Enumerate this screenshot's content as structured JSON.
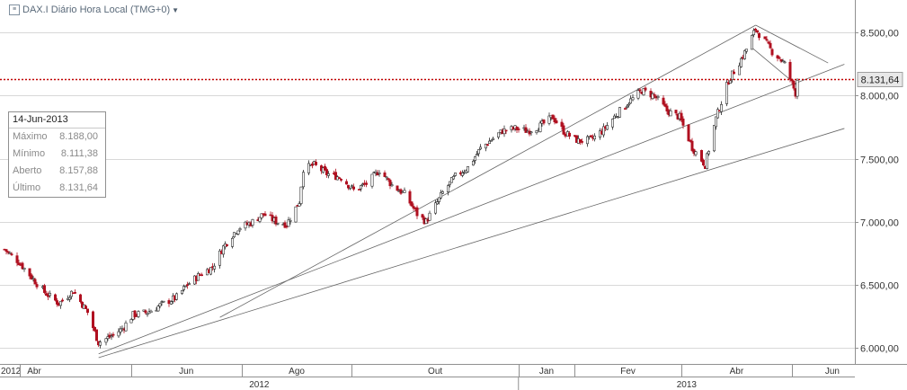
{
  "title": "DAX.I Diário Hora Local (TMG+0)",
  "info_box": {
    "date": "14-Jun-2013",
    "rows": [
      {
        "label": "Máximo",
        "value": "8.188,00"
      },
      {
        "label": "Mínimo",
        "value": "8.111,38"
      },
      {
        "label": "Aberto",
        "value": "8.157,88"
      },
      {
        "label": "Último",
        "value": "8.131,64"
      }
    ]
  },
  "colors": {
    "up": "#2a2a2a",
    "down": "#b01020",
    "ref_line": "#c00000",
    "price_label_bg": "#e8e8e8",
    "grid": "#d8d8d8",
    "channel": "#666666"
  },
  "chart_data": {
    "type": "candlestick",
    "instrument": "DAX.I",
    "timeframe": "daily",
    "x_start": "2012-04-02",
    "x_end": "2013-06-14",
    "ylim": [
      5870,
      8660
    ],
    "y_ticks": [
      6000,
      6500,
      7000,
      7500,
      8000,
      8500
    ],
    "y_tick_labels": [
      "6.000,00",
      "6.500,00",
      "7.000,00",
      "7.500,00",
      "8.000,00",
      "8.500,00"
    ],
    "last_value": 8131.64,
    "last_value_label": "8.131,64",
    "month_labels": [
      {
        "date": "2012-04-01",
        "label": "Abr"
      },
      {
        "date": "2012-06-01",
        "label": "Jun"
      },
      {
        "date": "2012-08-01",
        "label": "Ago"
      },
      {
        "date": "2012-10-01",
        "label": "Out"
      },
      {
        "date": "2013-01-01",
        "label": "Jan"
      },
      {
        "date": "2013-02-01",
        "label": "Fev"
      },
      {
        "date": "2013-04-01",
        "label": "Abr"
      },
      {
        "date": "2013-06-01",
        "label": "Jun"
      }
    ],
    "year_labels": [
      {
        "date": "2012-04-01",
        "label": "2012"
      },
      {
        "date": "2013-01-01",
        "label": "2013"
      }
    ],
    "first_axis_label": "2012",
    "close_path": [
      [
        "2012-04-02",
        6780
      ],
      [
        "2012-04-10",
        6680
      ],
      [
        "2012-04-17",
        6560
      ],
      [
        "2012-04-24",
        6440
      ],
      [
        "2012-05-02",
        6350
      ],
      [
        "2012-05-10",
        6450
      ],
      [
        "2012-05-18",
        6280
      ],
      [
        "2012-05-24",
        6040
      ],
      [
        "2012-06-01",
        6100
      ],
      [
        "2012-06-06",
        6150
      ],
      [
        "2012-06-12",
        6260
      ],
      [
        "2012-06-20",
        6280
      ],
      [
        "2012-06-29",
        6350
      ],
      [
        "2012-07-06",
        6400
      ],
      [
        "2012-07-12",
        6500
      ],
      [
        "2012-07-19",
        6580
      ],
      [
        "2012-07-26",
        6640
      ],
      [
        "2012-08-01",
        6800
      ],
      [
        "2012-08-09",
        6950
      ],
      [
        "2012-08-16",
        6990
      ],
      [
        "2012-08-23",
        7060
      ],
      [
        "2012-08-30",
        7000
      ],
      [
        "2012-09-05",
        6980
      ],
      [
        "2012-09-12",
        7160
      ],
      [
        "2012-09-14",
        7420
      ],
      [
        "2012-09-20",
        7450
      ],
      [
        "2012-09-27",
        7380
      ],
      [
        "2012-10-05",
        7350
      ],
      [
        "2012-10-12",
        7250
      ],
      [
        "2012-10-19",
        7300
      ],
      [
        "2012-10-26",
        7410
      ],
      [
        "2012-11-02",
        7290
      ],
      [
        "2012-11-09",
        7220
      ],
      [
        "2012-11-16",
        7060
      ],
      [
        "2012-11-21",
        7000
      ],
      [
        "2012-11-30",
        7230
      ],
      [
        "2012-12-07",
        7360
      ],
      [
        "2012-12-14",
        7430
      ],
      [
        "2012-12-21",
        7580
      ],
      [
        "2013-01-02",
        7720
      ],
      [
        "2013-01-09",
        7740
      ],
      [
        "2013-01-16",
        7720
      ],
      [
        "2013-01-23",
        7760
      ],
      [
        "2013-01-30",
        7830
      ],
      [
        "2013-02-06",
        7700
      ],
      [
        "2013-02-13",
        7640
      ],
      [
        "2013-02-20",
        7650
      ],
      [
        "2013-02-27",
        7730
      ],
      [
        "2013-03-06",
        7850
      ],
      [
        "2013-03-13",
        7950
      ],
      [
        "2013-03-20",
        8040
      ],
      [
        "2013-03-27",
        8000
      ],
      [
        "2013-04-03",
        7880
      ],
      [
        "2013-04-10",
        7830
      ],
      [
        "2013-04-17",
        7590
      ],
      [
        "2013-04-24",
        7450
      ],
      [
        "2013-04-30",
        7820
      ],
      [
        "2013-05-07",
        8120
      ],
      [
        "2013-05-14",
        8290
      ],
      [
        "2013-05-17",
        8370
      ],
      [
        "2013-05-22",
        8530
      ],
      [
        "2013-05-27",
        8430
      ],
      [
        "2013-05-31",
        8350
      ],
      [
        "2013-06-04",
        8300
      ],
      [
        "2013-06-07",
        8250
      ],
      [
        "2013-06-11",
        8100
      ],
      [
        "2013-06-13",
        8020
      ],
      [
        "2013-06-14",
        8131.64
      ]
    ],
    "trendlines": [
      [
        [
          "2012-07-30",
          6240
        ],
        [
          "2013-05-22",
          8560
        ]
      ],
      [
        [
          "2012-05-24",
          5950
        ],
        [
          "2013-07-10",
          8250
        ]
      ],
      [
        [
          "2012-05-24",
          5920
        ],
        [
          "2013-07-10",
          7740
        ]
      ],
      [
        [
          "2013-05-22",
          8560
        ],
        [
          "2013-07-01",
          8260
        ]
      ],
      [
        [
          "2013-05-20",
          8380
        ],
        [
          "2013-06-14",
          8080
        ]
      ]
    ]
  }
}
